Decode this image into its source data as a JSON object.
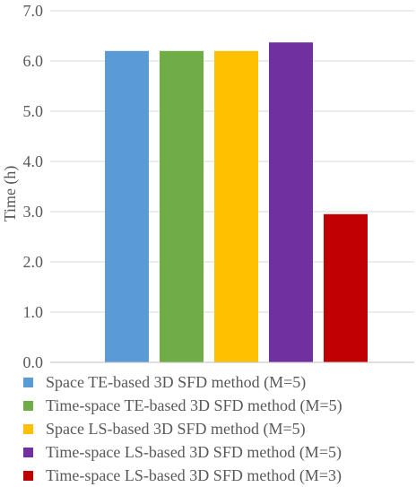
{
  "chart_data": {
    "type": "bar",
    "title": "",
    "xlabel": "",
    "ylabel": "Time (h)",
    "ylim": [
      0,
      7
    ],
    "yticks": [
      "0.0",
      "1.0",
      "2.0",
      "3.0",
      "4.0",
      "5.0",
      "6.0",
      "7.0"
    ],
    "grid": true,
    "legend_position": "bottom",
    "series": [
      {
        "name": "Space TE-based 3D SFD method (M=5)",
        "value": 6.2,
        "color": "#5B9BD5"
      },
      {
        "name": "Time-space TE-based 3D SFD method (M=5)",
        "value": 6.2,
        "color": "#70AD47"
      },
      {
        "name": "Space LS-based 3D SFD method (M=5)",
        "value": 6.2,
        "color": "#FFC000"
      },
      {
        "name": "Time-space LS-based 3D SFD method (M=5)",
        "value": 6.37,
        "color": "#7030A0"
      },
      {
        "name": "Time-space LS-based 3D SFD method (M=3)",
        "value": 2.95,
        "color": "#C00000"
      }
    ]
  }
}
